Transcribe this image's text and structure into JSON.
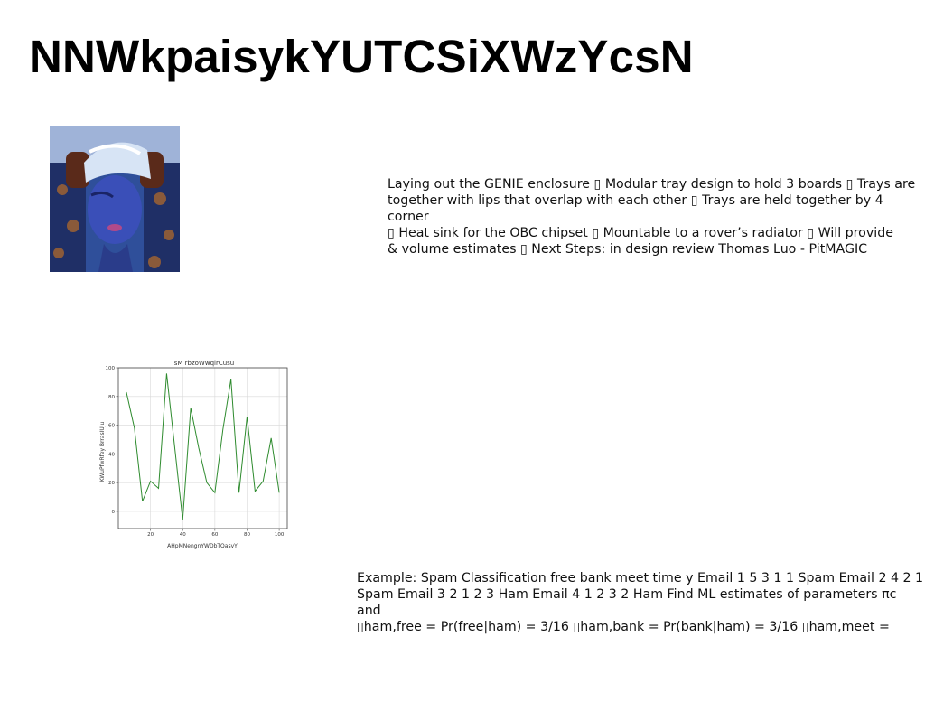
{
  "title": "NNWkpaisykYUTCSiXWzYcsN",
  "photo": {
    "icon": "person-photo"
  },
  "text_block_1": "Laying out the GENIE enclosure ▯ Modular tray design to hold 3 boards ▯ Trays are\ntogether with lips that overlap with each other ▯ Trays are held together by 4 corner\n▯ Heat sink for the OBC chipset ▯ Mountable to a rover’s radiator ▯ Will provide\n& volume estimates ▯ Next Steps: in design review Thomas Luo - PitMAGIC",
  "text_block_2": "Example: Spam Classification free bank meet time y Email 1 5 3 1 1 Spam Email 2 4 2 1\nSpam Email 3 2 1 2 3 Ham Email 4 1 2 3 2 Ham Find ML estimates of parameters πc and\n▯ham,free = Pr(free|ham) = 3/16 ▯ham,bank = Pr(bank|ham) = 3/16 ▯ham,meet =",
  "chart_data": {
    "type": "line",
    "title": "sM rbzoWwqlrCusu",
    "xlabel": "AHpMNengnYWDbTQasvY",
    "ylabel": "KWuPfwRfey BrrasIUju",
    "x": [
      5,
      10,
      15,
      20,
      25,
      30,
      35,
      40,
      45,
      50,
      55,
      60,
      65,
      70,
      75,
      80,
      85,
      90,
      95,
      100
    ],
    "series": [
      {
        "values": [
          83,
          58,
          7,
          21,
          16,
          96,
          45,
          -6,
          72,
          44,
          20,
          13,
          57,
          92,
          13,
          66,
          14,
          21,
          51,
          13
        ]
      }
    ],
    "xlim": [
      0,
      105
    ],
    "ylim": [
      -12,
      100
    ],
    "xticks": [
      20,
      40,
      60,
      80,
      100
    ],
    "yticks": [
      0,
      20,
      40,
      60,
      80,
      100
    ],
    "grid": true,
    "line_color": "#2e8b2e"
  }
}
